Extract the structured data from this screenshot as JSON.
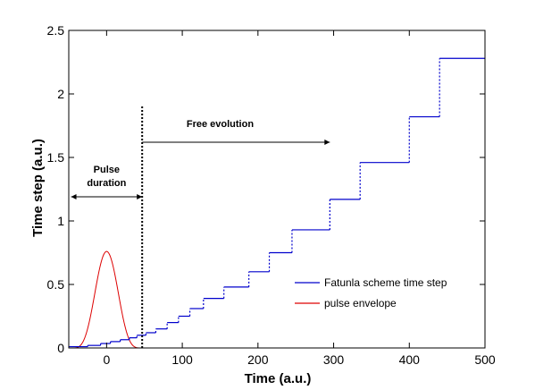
{
  "chart_data": {
    "type": "line",
    "xlabel": "Time (a.u.)",
    "ylabel": "Time step (a.u.)",
    "xlim": [
      -50,
      500
    ],
    "ylim": [
      0,
      2.5
    ],
    "x_ticks": [
      0,
      100,
      200,
      300,
      400,
      500
    ],
    "x_tick_labels": [
      "0",
      "100",
      "200",
      "300",
      "400",
      "500"
    ],
    "y_ticks": [
      0,
      0.5,
      1,
      1.5,
      2,
      2.5
    ],
    "y_tick_labels": [
      "0",
      "0.5",
      "1",
      "1.5",
      "2",
      "2.5"
    ],
    "grid": false,
    "legend_position": "lower-right",
    "series": [
      {
        "name": "Fatunla scheme time step",
        "color": "#0000cc",
        "style": "step",
        "steps": [
          {
            "x0": -50,
            "x1": -25,
            "y": 0.01
          },
          {
            "x0": -25,
            "x1": -8,
            "y": 0.02
          },
          {
            "x0": -8,
            "x1": 5,
            "y": 0.035
          },
          {
            "x0": 5,
            "x1": 18,
            "y": 0.05
          },
          {
            "x0": 18,
            "x1": 30,
            "y": 0.065
          },
          {
            "x0": 30,
            "x1": 40,
            "y": 0.08
          },
          {
            "x0": 40,
            "x1": 52,
            "y": 0.1
          },
          {
            "x0": 52,
            "x1": 65,
            "y": 0.12
          },
          {
            "x0": 65,
            "x1": 80,
            "y": 0.15
          },
          {
            "x0": 80,
            "x1": 95,
            "y": 0.2
          },
          {
            "x0": 95,
            "x1": 110,
            "y": 0.25
          },
          {
            "x0": 110,
            "x1": 128,
            "y": 0.31
          },
          {
            "x0": 128,
            "x1": 155,
            "y": 0.39
          },
          {
            "x0": 155,
            "x1": 188,
            "y": 0.48
          },
          {
            "x0": 188,
            "x1": 215,
            "y": 0.6
          },
          {
            "x0": 215,
            "x1": 245,
            "y": 0.75
          },
          {
            "x0": 245,
            "x1": 295,
            "y": 0.93
          },
          {
            "x0": 295,
            "x1": 335,
            "y": 1.17
          },
          {
            "x0": 335,
            "x1": 400,
            "y": 1.46
          },
          {
            "x0": 400,
            "x1": 440,
            "y": 1.82
          },
          {
            "x0": 440,
            "x1": 500,
            "y": 2.28
          }
        ]
      },
      {
        "name": "pulse envelope",
        "color": "#dd0000",
        "style": "gaussian",
        "peak": 0.76,
        "center": 0,
        "zero_at": 47
      }
    ],
    "annotations": [
      {
        "text_lines": [
          "Free evolution"
        ],
        "arrow_from": 47,
        "arrow_to": 295,
        "arrow_y": 1.62,
        "label_x": 150,
        "label_y": 1.74,
        "double_headed": false
      },
      {
        "text_lines": [
          "Pulse",
          "duration"
        ],
        "arrow_from": -47,
        "arrow_to": 47,
        "arrow_y": 1.19,
        "label_x": 0,
        "label_y": 1.38,
        "double_headed": true
      }
    ],
    "pulse_end_line": {
      "x": 47,
      "y_top": 1.91,
      "style": "dotted"
    }
  }
}
